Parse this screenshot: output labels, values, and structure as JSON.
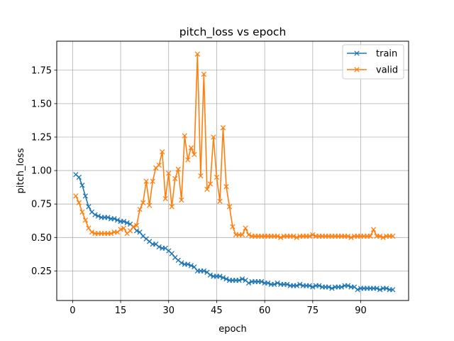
{
  "chart_data": {
    "type": "line",
    "title": "pitch_loss vs epoch",
    "xlabel": "epoch",
    "ylabel": "pitch_loss",
    "xlim": [
      -4.95,
      104.95
    ],
    "ylim": [
      0.0292,
      1.9664
    ],
    "xticks": [
      0,
      15,
      30,
      45,
      60,
      75,
      90
    ],
    "yticks": [
      0.25,
      0.5,
      0.75,
      1.0,
      1.25,
      1.5,
      1.75
    ],
    "ytick_labels": [
      "0.25",
      "0.50",
      "0.75",
      "1.00",
      "1.25",
      "1.50",
      "1.75"
    ],
    "grid": true,
    "legend_position": "upper right",
    "marker": "x",
    "x": [
      1,
      2,
      3,
      4,
      5,
      6,
      7,
      8,
      9,
      10,
      11,
      12,
      13,
      14,
      15,
      16,
      17,
      18,
      19,
      20,
      21,
      22,
      23,
      24,
      25,
      26,
      27,
      28,
      29,
      30,
      31,
      32,
      33,
      34,
      35,
      36,
      37,
      38,
      39,
      40,
      41,
      42,
      43,
      44,
      45,
      46,
      47,
      48,
      49,
      50,
      51,
      52,
      53,
      54,
      55,
      56,
      57,
      58,
      59,
      60,
      61,
      62,
      63,
      64,
      65,
      66,
      67,
      68,
      69,
      70,
      71,
      72,
      73,
      74,
      75,
      76,
      77,
      78,
      79,
      80,
      81,
      82,
      83,
      84,
      85,
      86,
      87,
      88,
      89,
      90,
      91,
      92,
      93,
      94,
      95,
      96,
      97,
      98,
      99,
      100
    ],
    "series": [
      {
        "name": "train",
        "color": "#1f77b4",
        "values": [
          0.97,
          0.95,
          0.89,
          0.81,
          0.73,
          0.69,
          0.67,
          0.66,
          0.65,
          0.65,
          0.65,
          0.64,
          0.64,
          0.63,
          0.62,
          0.62,
          0.61,
          0.6,
          0.58,
          0.55,
          0.54,
          0.51,
          0.49,
          0.47,
          0.45,
          0.45,
          0.43,
          0.42,
          0.42,
          0.4,
          0.38,
          0.35,
          0.33,
          0.31,
          0.3,
          0.3,
          0.29,
          0.28,
          0.25,
          0.25,
          0.25,
          0.24,
          0.22,
          0.21,
          0.21,
          0.21,
          0.2,
          0.19,
          0.18,
          0.18,
          0.18,
          0.18,
          0.19,
          0.18,
          0.16,
          0.17,
          0.17,
          0.17,
          0.17,
          0.16,
          0.16,
          0.15,
          0.15,
          0.16,
          0.15,
          0.15,
          0.15,
          0.14,
          0.14,
          0.14,
          0.15,
          0.14,
          0.14,
          0.14,
          0.13,
          0.14,
          0.14,
          0.13,
          0.13,
          0.13,
          0.12,
          0.13,
          0.13,
          0.13,
          0.14,
          0.14,
          0.13,
          0.13,
          0.11,
          0.12,
          0.12,
          0.12,
          0.12,
          0.12,
          0.12,
          0.11,
          0.12,
          0.12,
          0.11,
          0.11
        ]
      },
      {
        "name": "valid",
        "color": "#ff7f0e",
        "values": [
          0.81,
          0.76,
          0.69,
          0.63,
          0.57,
          0.54,
          0.53,
          0.53,
          0.53,
          0.53,
          0.53,
          0.53,
          0.54,
          0.54,
          0.56,
          0.57,
          0.53,
          0.55,
          0.58,
          0.59,
          0.71,
          0.76,
          0.92,
          0.74,
          0.92,
          1.02,
          1.04,
          1.14,
          0.79,
          0.98,
          0.73,
          0.94,
          1.01,
          0.78,
          1.26,
          1.08,
          1.17,
          1.12,
          1.87,
          0.96,
          1.72,
          0.86,
          0.9,
          1.25,
          0.95,
          0.77,
          1.32,
          0.88,
          0.73,
          0.58,
          0.52,
          0.52,
          0.52,
          0.57,
          0.52,
          0.51,
          0.51,
          0.51,
          0.51,
          0.51,
          0.51,
          0.51,
          0.51,
          0.51,
          0.5,
          0.51,
          0.51,
          0.51,
          0.51,
          0.5,
          0.51,
          0.51,
          0.51,
          0.51,
          0.52,
          0.51,
          0.51,
          0.51,
          0.51,
          0.51,
          0.51,
          0.51,
          0.51,
          0.51,
          0.51,
          0.51,
          0.5,
          0.51,
          0.51,
          0.51,
          0.51,
          0.51,
          0.51,
          0.56,
          0.51,
          0.51,
          0.5,
          0.51,
          0.51,
          0.51
        ]
      }
    ]
  }
}
